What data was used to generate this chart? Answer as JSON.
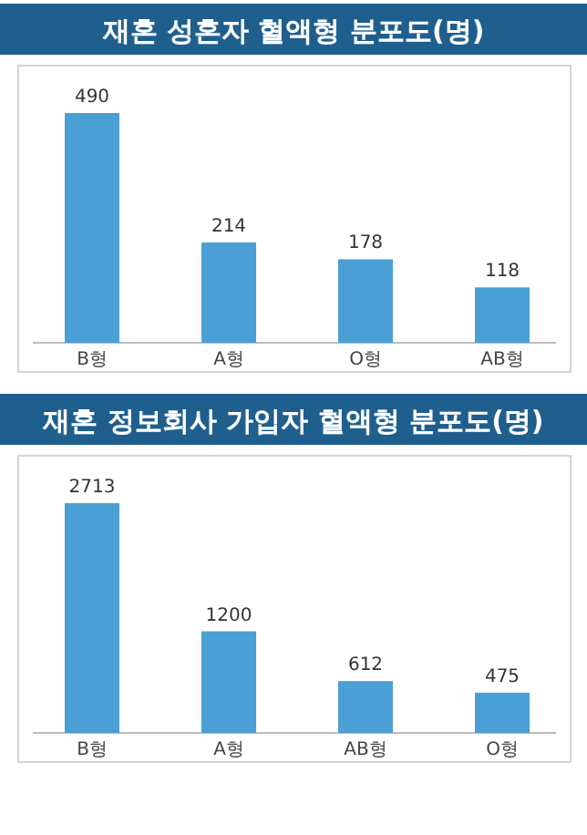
{
  "chart_data": [
    {
      "type": "bar",
      "title": "재혼 성혼자 혈액형 분포도(명)",
      "categories": [
        "B형",
        "A형",
        "O형",
        "AB형"
      ],
      "values": [
        490,
        214,
        178,
        118
      ],
      "color": "#4a9fd5",
      "data_labels": true
    },
    {
      "type": "bar",
      "title": "재혼 정보회사 가입자 혈액형 분포도(명)",
      "categories": [
        "B형",
        "A형",
        "AB형",
        "O형"
      ],
      "values": [
        2713,
        1200,
        612,
        475
      ],
      "color": "#4a9fd5",
      "data_labels": true
    }
  ]
}
